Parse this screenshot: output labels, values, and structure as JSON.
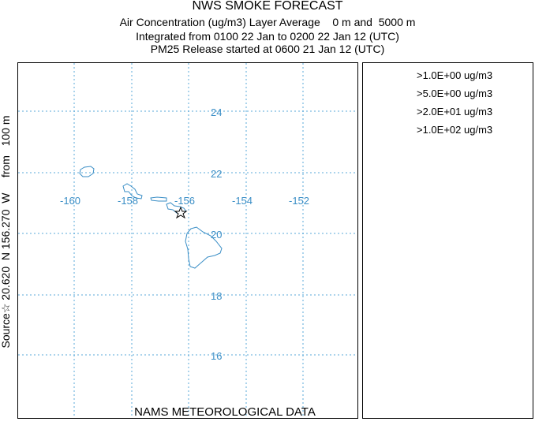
{
  "title": {
    "line1": "NWS SMOKE FORECAST",
    "line2": "Air Concentration (ug/m3) Layer Average    0 m and  5000 m",
    "line3": "Integrated from 0100 22 Jan to 0200 22 Jan 12 (UTC)",
    "line4": "PM25 Release started at 0600 21 Jan 12 (UTC)"
  },
  "side_label": "Source☆ 20.620  N 156.270  W     from   100 m",
  "footer": "NAMS METEOROLOGICAL DATA",
  "legend": [
    ">1.0E+00 ug/m3",
    ">5.0E+00 ug/m3",
    ">2.0E+01 ug/m3",
    ">1.0E+02 ug/m3"
  ],
  "map": {
    "lon_labels": [
      "-160",
      "-158",
      "-156",
      "-154",
      "-152"
    ],
    "lat_labels": [
      "24",
      "22",
      "20",
      "18",
      "16"
    ],
    "grid_color": "#5aa8d8",
    "coast_color": "#3a8ec6",
    "source_marker": "star-icon"
  }
}
